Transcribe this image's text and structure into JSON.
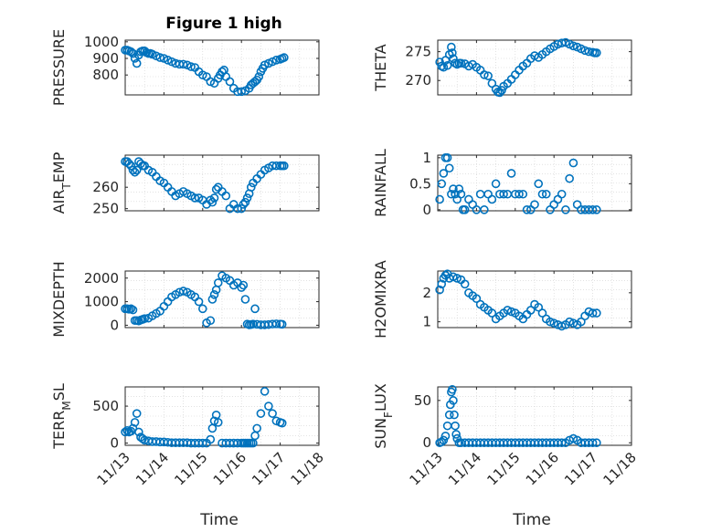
{
  "figure_title": "Figure 1 high",
  "colors": {
    "marker": "#0072BD",
    "axis": "#262626",
    "background": "#ffffff"
  },
  "chart_data": [
    {
      "id": "pressure",
      "type": "scatter",
      "title": "Figure 1 high",
      "ylabel": "PRESSURE",
      "ylabel_sub": "",
      "xlim": [
        0,
        5
      ],
      "ylim": [
        680,
        1010
      ],
      "yticks": [
        800,
        900,
        1000
      ],
      "xticklabels": [],
      "xlabel": "",
      "x": [
        0.0,
        0.05,
        0.1,
        0.15,
        0.2,
        0.25,
        0.3,
        0.35,
        0.4,
        0.45,
        0.5,
        0.55,
        0.6,
        0.65,
        0.7,
        0.8,
        0.9,
        1.0,
        1.1,
        1.2,
        1.3,
        1.4,
        1.5,
        1.6,
        1.7,
        1.8,
        1.9,
        2.0,
        2.1,
        2.2,
        2.3,
        2.4,
        2.45,
        2.5,
        2.55,
        2.6,
        2.7,
        2.8,
        2.9,
        3.0,
        3.1,
        3.2,
        3.25,
        3.3,
        3.35,
        3.4,
        3.45,
        3.5,
        3.55,
        3.6,
        3.7,
        3.8,
        3.9,
        4.0,
        4.05,
        4.1
      ],
      "y": [
        950,
        950,
        945,
        940,
        930,
        900,
        870,
        920,
        940,
        945,
        945,
        935,
        930,
        930,
        925,
        915,
        905,
        900,
        890,
        880,
        870,
        865,
        865,
        860,
        850,
        845,
        820,
        800,
        790,
        760,
        750,
        780,
        800,
        820,
        830,
        790,
        760,
        720,
        700,
        700,
        705,
        720,
        740,
        750,
        760,
        770,
        790,
        820,
        840,
        860,
        870,
        880,
        890,
        895,
        900,
        905
      ]
    },
    {
      "id": "theta",
      "type": "scatter",
      "ylabel": "THETA",
      "ylabel_sub": "",
      "xlim": [
        0,
        10
      ],
      "ylim": [
        267.5,
        277
      ],
      "yticks": [
        270,
        275
      ],
      "xticklabels": [],
      "xlabel": "",
      "x": [
        0.1,
        0.2,
        0.3,
        0.4,
        0.5,
        0.6,
        0.7,
        0.75,
        0.8,
        0.9,
        1.0,
        1.1,
        1.2,
        1.4,
        1.6,
        1.8,
        2.0,
        2.2,
        2.4,
        2.6,
        2.8,
        3.0,
        3.1,
        3.2,
        3.3,
        3.4,
        3.6,
        3.8,
        4.0,
        4.2,
        4.4,
        4.6,
        4.8,
        5.0,
        5.2,
        5.4,
        5.6,
        5.8,
        6.0,
        6.2,
        6.4,
        6.6,
        6.8,
        7.0,
        7.2,
        7.4,
        7.6,
        7.8,
        8.0,
        8.1,
        8.2
      ],
      "y": [
        273.2,
        272.5,
        272.3,
        273.5,
        272.6,
        274.5,
        275.8,
        274.8,
        273.8,
        273.0,
        272.8,
        273.0,
        273.0,
        272.9,
        272.5,
        272.8,
        272.3,
        271.8,
        271.0,
        270.8,
        269.5,
        268.5,
        268.0,
        267.9,
        268.3,
        269.0,
        269.5,
        270.2,
        271.0,
        271.8,
        272.5,
        273.0,
        273.8,
        274.3,
        274.0,
        274.5,
        275.0,
        275.5,
        275.9,
        276.3,
        276.5,
        276.6,
        276.3,
        276.0,
        275.8,
        275.5,
        275.2,
        275.0,
        274.9,
        274.8,
        274.8
      ]
    },
    {
      "id": "air_temp",
      "type": "scatter",
      "ylabel": "AIR",
      "ylabel_sub": "T",
      "ylabel_suffix": "EMP",
      "xlim": [
        0,
        5
      ],
      "ylim": [
        249,
        275
      ],
      "yticks": [
        250,
        260
      ],
      "xticklabels": [],
      "xlabel": "",
      "x": [
        0.0,
        0.05,
        0.1,
        0.15,
        0.2,
        0.25,
        0.3,
        0.35,
        0.4,
        0.45,
        0.5,
        0.6,
        0.7,
        0.8,
        0.9,
        1.0,
        1.1,
        1.2,
        1.3,
        1.4,
        1.5,
        1.6,
        1.7,
        1.8,
        1.9,
        2.0,
        2.1,
        2.2,
        2.25,
        2.3,
        2.35,
        2.4,
        2.5,
        2.6,
        2.7,
        2.8,
        2.9,
        3.0,
        3.05,
        3.1,
        3.15,
        3.2,
        3.25,
        3.3,
        3.4,
        3.5,
        3.6,
        3.7,
        3.8,
        3.9,
        4.0,
        4.05,
        4.1
      ],
      "y": [
        272,
        272,
        271,
        270,
        268,
        267,
        268,
        272,
        271,
        270,
        270,
        268,
        267,
        265,
        263,
        262,
        260,
        258,
        256,
        257,
        258,
        257,
        256,
        255,
        255,
        254,
        252,
        254,
        253,
        255,
        259,
        260,
        258,
        256,
        250,
        252,
        250,
        250,
        252,
        253,
        255,
        257,
        260,
        262,
        264,
        266,
        268,
        269,
        270,
        270,
        270,
        270,
        270
      ]
    },
    {
      "id": "rainfall",
      "type": "scatter",
      "ylabel": "RAINFALL",
      "ylabel_sub": "",
      "xlim": [
        0,
        10
      ],
      "ylim": [
        -0.02,
        1.05
      ],
      "yticks": [
        0,
        0.5,
        1
      ],
      "xticklabels": [],
      "xlabel": "",
      "x": [
        0.1,
        0.2,
        0.3,
        0.4,
        0.5,
        0.6,
        0.7,
        0.8,
        0.9,
        1.0,
        1.1,
        1.2,
        1.3,
        1.4,
        1.6,
        1.8,
        2.0,
        2.2,
        2.4,
        2.6,
        2.8,
        3.0,
        3.2,
        3.4,
        3.6,
        3.8,
        4.0,
        4.2,
        4.4,
        4.6,
        4.8,
        5.0,
        5.2,
        5.4,
        5.6,
        5.8,
        6.0,
        6.2,
        6.4,
        6.6,
        6.8,
        7.0,
        7.2,
        7.4,
        7.6,
        7.8,
        8.0,
        8.2
      ],
      "y": [
        0.2,
        0.5,
        0.7,
        1.0,
        1.0,
        0.8,
        0.3,
        0.4,
        0.3,
        0.2,
        0.4,
        0.3,
        0.0,
        0.0,
        0.2,
        0.1,
        0.0,
        0.3,
        0.0,
        0.3,
        0.2,
        0.5,
        0.3,
        0.3,
        0.3,
        0.7,
        0.3,
        0.3,
        0.3,
        0.0,
        0.0,
        0.1,
        0.5,
        0.3,
        0.3,
        0.0,
        0.1,
        0.2,
        0.3,
        0.0,
        0.6,
        0.9,
        0.1,
        0.0,
        0.0,
        0.0,
        0.0,
        0.0
      ]
    },
    {
      "id": "mixdepth",
      "type": "scatter",
      "ylabel": "MIXDEPTH",
      "ylabel_sub": "",
      "xlim": [
        0,
        5
      ],
      "ylim": [
        -100,
        2300
      ],
      "yticks": [
        0,
        1000,
        2000
      ],
      "xticklabels": [],
      "xlabel": "",
      "x": [
        0.0,
        0.05,
        0.1,
        0.15,
        0.2,
        0.25,
        0.3,
        0.35,
        0.4,
        0.45,
        0.5,
        0.6,
        0.7,
        0.8,
        0.9,
        1.0,
        1.1,
        1.2,
        1.3,
        1.4,
        1.5,
        1.6,
        1.7,
        1.8,
        1.9,
        2.0,
        2.1,
        2.2,
        2.25,
        2.3,
        2.35,
        2.4,
        2.5,
        2.6,
        2.7,
        2.8,
        2.9,
        3.0,
        3.05,
        3.1,
        3.15,
        3.2,
        3.25,
        3.3,
        3.35,
        3.4,
        3.5,
        3.6,
        3.7,
        3.8,
        3.9,
        4.0,
        4.05
      ],
      "y": [
        700,
        700,
        680,
        700,
        650,
        200,
        200,
        180,
        220,
        250,
        280,
        300,
        400,
        500,
        600,
        800,
        1000,
        1200,
        1300,
        1400,
        1450,
        1400,
        1300,
        1200,
        1000,
        700,
        100,
        200,
        1100,
        1300,
        1500,
        1800,
        2100,
        2000,
        1900,
        1700,
        1800,
        1600,
        1700,
        1100,
        50,
        20,
        30,
        50,
        700,
        40,
        20,
        20,
        30,
        50,
        60,
        50,
        40
      ]
    },
    {
      "id": "h2omixra",
      "type": "scatter",
      "ylabel": "H2OMIXRA",
      "ylabel_sub": "",
      "xlim": [
        0,
        10
      ],
      "ylim": [
        0.8,
        2.75
      ],
      "yticks": [
        1,
        2
      ],
      "xticklabels": [],
      "xlabel": "",
      "x": [
        0.1,
        0.2,
        0.3,
        0.4,
        0.5,
        0.6,
        0.8,
        1.0,
        1.2,
        1.4,
        1.6,
        1.8,
        2.0,
        2.2,
        2.4,
        2.6,
        2.8,
        3.0,
        3.2,
        3.4,
        3.6,
        3.8,
        4.0,
        4.2,
        4.4,
        4.6,
        4.8,
        5.0,
        5.2,
        5.4,
        5.6,
        5.8,
        6.0,
        6.2,
        6.4,
        6.6,
        6.8,
        7.0,
        7.2,
        7.4,
        7.6,
        7.8,
        8.0,
        8.2
      ],
      "y": [
        2.1,
        2.3,
        2.5,
        2.6,
        2.65,
        2.5,
        2.55,
        2.5,
        2.45,
        2.3,
        2.0,
        1.9,
        1.8,
        1.6,
        1.5,
        1.4,
        1.3,
        1.1,
        1.2,
        1.3,
        1.4,
        1.35,
        1.3,
        1.2,
        1.1,
        1.25,
        1.4,
        1.6,
        1.5,
        1.3,
        1.1,
        1.0,
        0.95,
        0.9,
        0.85,
        0.9,
        1.0,
        0.95,
        0.9,
        1.0,
        1.2,
        1.35,
        1.3,
        1.3
      ]
    },
    {
      "id": "terr_msl",
      "type": "scatter",
      "ylabel": "TERR",
      "ylabel_sub": "M",
      "ylabel_suffix": "SL",
      "xlim": [
        0,
        5
      ],
      "ylim": [
        -30,
        760
      ],
      "yticks": [
        0,
        500
      ],
      "xticklabels": [
        "11/13",
        "11/14",
        "11/15",
        "11/16",
        "11/17",
        "11/18"
      ],
      "xlabel": "Time",
      "x": [
        0.0,
        0.05,
        0.1,
        0.15,
        0.2,
        0.25,
        0.3,
        0.35,
        0.4,
        0.45,
        0.5,
        0.6,
        0.7,
        0.8,
        0.9,
        1.0,
        1.1,
        1.2,
        1.3,
        1.4,
        1.5,
        1.6,
        1.7,
        1.8,
        1.9,
        2.0,
        2.1,
        2.2,
        2.25,
        2.3,
        2.35,
        2.4,
        2.5,
        2.6,
        2.7,
        2.8,
        2.9,
        3.0,
        3.05,
        3.1,
        3.15,
        3.2,
        3.25,
        3.3,
        3.35,
        3.4,
        3.5,
        3.6,
        3.7,
        3.8,
        3.9,
        4.0,
        4.05
      ],
      "y": [
        150,
        170,
        150,
        160,
        200,
        280,
        400,
        150,
        80,
        60,
        40,
        30,
        20,
        20,
        15,
        15,
        10,
        5,
        5,
        5,
        5,
        5,
        0,
        0,
        0,
        0,
        0,
        50,
        200,
        300,
        380,
        280,
        0,
        0,
        0,
        0,
        0,
        0,
        0,
        0,
        0,
        0,
        0,
        0,
        100,
        200,
        400,
        700,
        500,
        400,
        300,
        280,
        270
      ]
    },
    {
      "id": "sun_flux",
      "type": "scatter",
      "ylabel": "SUN",
      "ylabel_sub": "F",
      "ylabel_suffix": "LUX",
      "xlim": [
        0,
        10
      ],
      "ylim": [
        -3,
        66
      ],
      "yticks": [
        0,
        50
      ],
      "xticklabels": [
        "11/13",
        "11/14",
        "11/15",
        "11/16",
        "11/17",
        "11/18"
      ],
      "xlabel": "Time",
      "x": [
        0.1,
        0.2,
        0.3,
        0.4,
        0.5,
        0.6,
        0.65,
        0.7,
        0.75,
        0.8,
        0.85,
        0.9,
        0.95,
        1.0,
        1.1,
        1.2,
        1.4,
        1.6,
        1.8,
        2.0,
        2.2,
        2.4,
        2.6,
        2.8,
        3.0,
        3.2,
        3.4,
        3.6,
        3.8,
        4.0,
        4.2,
        4.4,
        4.6,
        4.8,
        5.0,
        5.2,
        5.4,
        5.6,
        5.8,
        6.0,
        6.2,
        6.4,
        6.6,
        6.8,
        7.0,
        7.2,
        7.4,
        7.6,
        7.8,
        8.0,
        8.2
      ],
      "y": [
        0,
        1,
        3,
        8,
        20,
        33,
        45,
        60,
        63,
        50,
        33,
        20,
        10,
        5,
        0,
        0,
        0,
        0,
        0,
        0,
        0,
        0,
        0,
        0,
        0,
        0,
        0,
        0,
        0,
        0,
        0,
        0,
        0,
        0,
        0,
        0,
        0,
        0,
        0,
        0,
        0,
        0,
        0,
        3,
        5,
        3,
        0,
        0,
        0,
        0,
        0
      ]
    }
  ]
}
